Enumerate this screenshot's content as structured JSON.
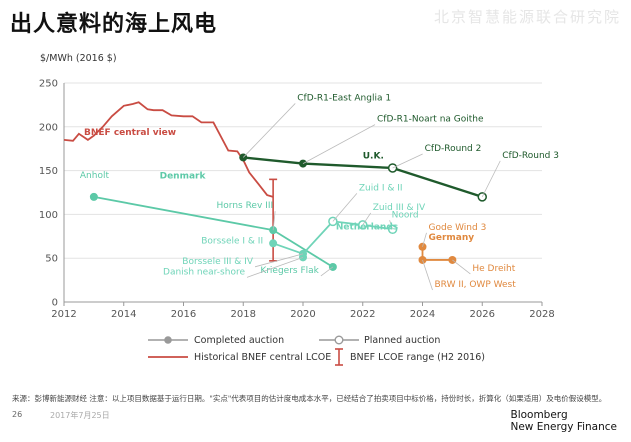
{
  "page": {
    "title": "出人意料的海上风电",
    "watermark": "北京智慧能源联合研究院",
    "footnote": "来源：彭博新能源财经 注意：以上项目数据基于运行日期。\"实点\"代表项目的估计度电成本水平，已经结合了拍卖项目中标价格，持份时长，折算化（如果适用）及电价假设模型。",
    "page_number": "26",
    "date": "2017年7月25日",
    "brand_line1": "Bloomberg",
    "brand_line2": "New Energy Finance"
  },
  "legend": {
    "completed": "Completed auction",
    "planned": "Planned auction",
    "historical": "Historical BNEF central  LCOE",
    "range": "BNEF LCOE range (H2 2016)"
  },
  "colors": {
    "red": "#c94c43",
    "denmark": "#5cc9a7",
    "netherlands": "#6fd4b8",
    "uk": "#1f5a2c",
    "germany": "#e0893f",
    "axis": "#999999",
    "grid": "#e3e3e3"
  },
  "chart_data": {
    "type": "line",
    "ylabel": "$/MWh (2016 $)",
    "xlim": [
      2012,
      2028
    ],
    "ylim": [
      0,
      250
    ],
    "xticks": [
      2012,
      2014,
      2016,
      2018,
      2020,
      2022,
      2024,
      2026,
      2028
    ],
    "yticks": [
      0,
      50,
      100,
      150,
      200,
      250
    ],
    "historical": {
      "label": "BNEF central view",
      "x": [
        2012,
        2012.3,
        2012.5,
        2012.8,
        2013,
        2013.3,
        2013.6,
        2014,
        2014.3,
        2014.5,
        2014.8,
        2015,
        2015.3,
        2015.6,
        2016,
        2016.3,
        2016.6,
        2017,
        2017.5,
        2017.8,
        2018,
        2018.2,
        2018.5,
        2018.8,
        2019
      ],
      "y": [
        185,
        184,
        192,
        185,
        190,
        200,
        212,
        224,
        226,
        228,
        220,
        219,
        219,
        213,
        212,
        212,
        205,
        205,
        173,
        172,
        162,
        148,
        135,
        122,
        120
      ]
    },
    "range_bar": {
      "x": 2019,
      "low": 47,
      "high": 140
    },
    "series": [
      {
        "name": "Denmark",
        "points": [
          {
            "x": 2013,
            "y": 120,
            "label": "Anholt",
            "status": "completed"
          },
          {
            "x": 2019,
            "y": 82,
            "label": "Horns Rev III",
            "status": "completed"
          },
          {
            "x": 2021,
            "y": 40,
            "label": "Kriegers Flak",
            "status": "completed"
          }
        ],
        "segments": [
          [
            0,
            1
          ],
          [
            1,
            2
          ]
        ]
      },
      {
        "name": "Netherlands",
        "points": [
          {
            "x": 2019,
            "y": 67,
            "label": "Borssele I & II",
            "status": "completed"
          },
          {
            "x": 2020,
            "y": 55,
            "label": "Borssele III & IV",
            "status": "completed"
          },
          {
            "x": 2020,
            "y": 51,
            "label": "Danish near-shore",
            "status": "completed"
          },
          {
            "x": 2021,
            "y": 92,
            "label": "Zuid I & II",
            "status": "planned"
          },
          {
            "x": 2022,
            "y": 88,
            "label": "Zuid III & IV",
            "status": "planned"
          },
          {
            "x": 2023,
            "y": 83,
            "label": "Noord",
            "status": "planned"
          }
        ],
        "segments": [
          [
            0,
            1
          ],
          [
            1,
            3
          ],
          [
            3,
            4
          ],
          [
            4,
            5
          ]
        ]
      },
      {
        "name": "U.K.",
        "points": [
          {
            "x": 2018,
            "y": 165,
            "label": "CfD-R1-East Anglia 1",
            "status": "completed"
          },
          {
            "x": 2020,
            "y": 158,
            "label": "CfD-R1-Noart na Goithe",
            "status": "completed"
          },
          {
            "x": 2023,
            "y": 153,
            "label": "CfD-Round 2",
            "status": "planned"
          },
          {
            "x": 2026,
            "y": 120,
            "label": "CfD-Round 3",
            "status": "planned"
          }
        ],
        "segments": [
          [
            0,
            1
          ],
          [
            1,
            2
          ],
          [
            2,
            3
          ]
        ]
      },
      {
        "name": "Germany",
        "points": [
          {
            "x": 2024,
            "y": 63,
            "label": "Gode Wind 3",
            "status": "completed"
          },
          {
            "x": 2024,
            "y": 48,
            "label": "BRW II, OWP West",
            "status": "completed"
          },
          {
            "x": 2025,
            "y": 48,
            "label": "He Dreiht",
            "status": "completed"
          }
        ],
        "segments": [
          [
            0,
            1
          ],
          [
            1,
            2
          ]
        ]
      }
    ]
  }
}
